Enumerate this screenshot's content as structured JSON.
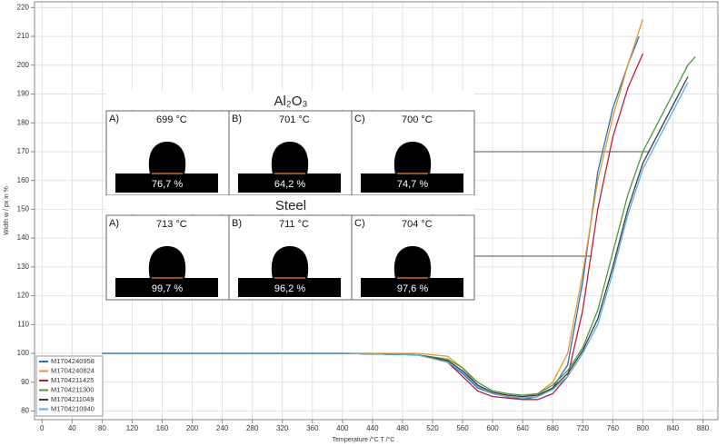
{
  "chart_data": {
    "type": "line",
    "xlabel": "Temperature /°C T /°C",
    "ylabel": "Width w / px in %",
    "xlim": [
      -10,
      900
    ],
    "ylim": [
      77,
      222
    ],
    "xticks": [
      0,
      40,
      80,
      120,
      160,
      200,
      240,
      280,
      320,
      360,
      400,
      440,
      480,
      520,
      560,
      600,
      640,
      680,
      720,
      760,
      800,
      840,
      880
    ],
    "yticks": [
      80,
      90,
      100,
      110,
      120,
      130,
      140,
      150,
      160,
      170,
      180,
      190,
      200,
      210,
      220
    ],
    "grid": true,
    "legend": "lower left",
    "series": [
      {
        "name": "M1704240958",
        "color": "#2e6fb5",
        "x": [
          80,
          200,
          400,
          500,
          540,
          560,
          580,
          600,
          620,
          640,
          660,
          680,
          700,
          720,
          740,
          760,
          780,
          795
        ],
        "values": [
          100,
          100,
          100,
          99.5,
          97,
          93,
          88,
          86,
          85,
          84,
          85,
          88,
          96,
          125,
          163,
          185,
          200,
          210
        ]
      },
      {
        "name": "M1704240824",
        "color": "#e39a2a",
        "x": [
          80,
          200,
          400,
          500,
          540,
          560,
          580,
          600,
          620,
          640,
          660,
          680,
          700,
          720,
          740,
          760,
          780,
          800
        ],
        "values": [
          100,
          100,
          100,
          100,
          99,
          95,
          89,
          86,
          85.5,
          85,
          86,
          90,
          100,
          128,
          160,
          182,
          200,
          216
        ]
      },
      {
        "name": "M1704211425",
        "color": "#b5213a",
        "x": [
          80,
          200,
          400,
          500,
          540,
          560,
          580,
          600,
          620,
          640,
          660,
          680,
          700,
          720,
          740,
          760,
          780,
          800
        ],
        "values": [
          100,
          100,
          100,
          99.5,
          97,
          92,
          87,
          85,
          84.5,
          84,
          84,
          86,
          92,
          115,
          150,
          175,
          192,
          204
        ]
      },
      {
        "name": "M1704211300",
        "color": "#4a9a3a",
        "x": [
          80,
          200,
          400,
          500,
          540,
          560,
          580,
          600,
          620,
          640,
          660,
          680,
          700,
          720,
          740,
          760,
          780,
          800,
          820,
          840,
          860,
          870
        ],
        "values": [
          100,
          100,
          100,
          99.5,
          98,
          95,
          90,
          87,
          86,
          85.5,
          86,
          89,
          94,
          102,
          115,
          135,
          155,
          170,
          180,
          190,
          200,
          203
        ]
      },
      {
        "name": "M1704211049",
        "color": "#3a3a44",
        "x": [
          80,
          200,
          400,
          500,
          540,
          560,
          580,
          600,
          620,
          640,
          660,
          680,
          700,
          720,
          740,
          760,
          780,
          800,
          820,
          840,
          860
        ],
        "values": [
          100,
          100,
          100,
          99.5,
          97.5,
          94,
          89,
          86.5,
          85.5,
          85,
          85.5,
          88,
          93,
          101,
          112,
          130,
          150,
          166,
          176,
          186,
          196
        ]
      },
      {
        "name": "M1704210940",
        "color": "#5aaee0",
        "x": [
          80,
          200,
          400,
          500,
          540,
          560,
          580,
          600,
          620,
          640,
          660,
          680,
          700,
          720,
          740,
          760,
          780,
          800,
          820,
          840,
          860
        ],
        "values": [
          100,
          100,
          100,
          99.5,
          97,
          93.5,
          88.5,
          86,
          85,
          84.5,
          85,
          87.5,
          92,
          100,
          110,
          128,
          148,
          164,
          174,
          184,
          194
        ]
      }
    ],
    "insets": [
      {
        "title": "Al₂O₃",
        "panels": [
          {
            "label": "A)",
            "temperature": "699 °C",
            "percent": "76,7 %"
          },
          {
            "label": "B)",
            "temperature": "701 °C",
            "percent": "64,2 %"
          },
          {
            "label": "C)",
            "temperature": "700 °C",
            "percent": "74,7 %"
          }
        ]
      },
      {
        "title": "Steel",
        "panels": [
          {
            "label": "A)",
            "temperature": "713 °C",
            "percent": "99,7 %"
          },
          {
            "label": "B)",
            "temperature": "711 °C",
            "percent": "96,2 %"
          },
          {
            "label": "C)",
            "temperature": "704 °C",
            "percent": "97,6 %"
          }
        ]
      }
    ]
  }
}
